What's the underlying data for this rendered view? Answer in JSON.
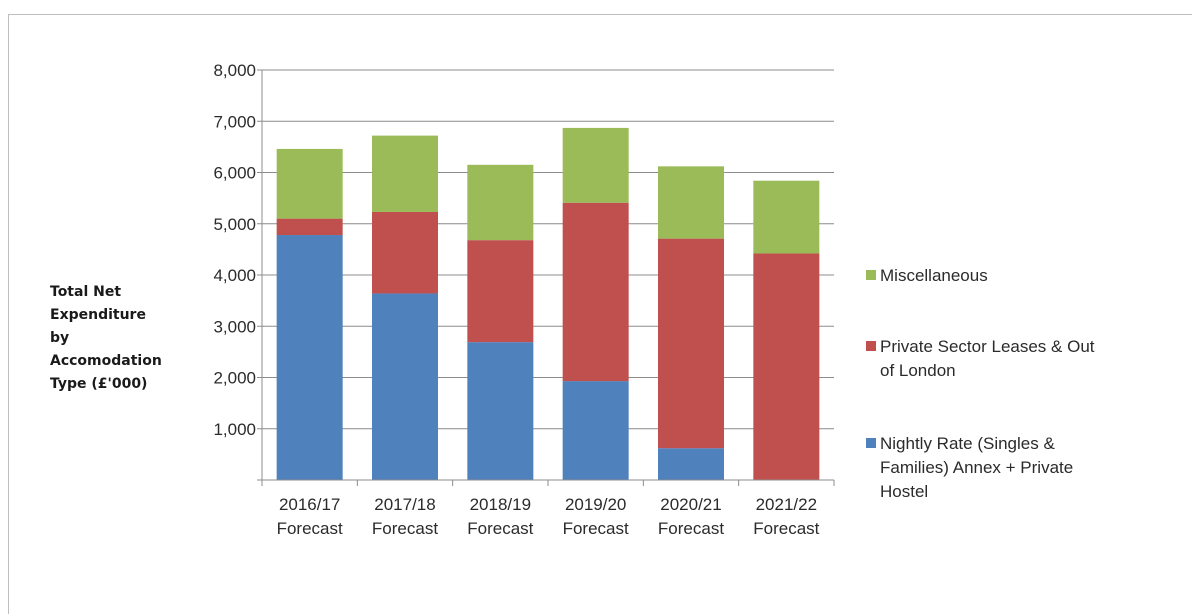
{
  "chart_data": {
    "type": "bar",
    "stacked": true,
    "ylabel": "Total Net Expenditure by Accomodation Type (£'000)",
    "ylabel_lines": [
      "Total Net",
      "Expenditure",
      "by",
      "Accomodation",
      "Type (£'000)"
    ],
    "ylim": [
      0,
      8000
    ],
    "yticks": [
      0,
      1000,
      2000,
      3000,
      4000,
      5000,
      6000,
      7000,
      8000
    ],
    "ytick_labels": [
      "",
      "1,000",
      "2,000",
      "3,000",
      "4,000",
      "5,000",
      "6,000",
      "7,000",
      "8,000"
    ],
    "grid": true,
    "legend_position": "right",
    "categories": [
      [
        "2016/17",
        "Forecast"
      ],
      [
        "2017/18",
        "Forecast"
      ],
      [
        "2018/19",
        "Forecast"
      ],
      [
        "2019/20",
        "Forecast"
      ],
      [
        "2020/21",
        "Forecast"
      ],
      [
        "2021/22",
        "Forecast"
      ]
    ],
    "series": [
      {
        "name": "Nightly Rate (Singles & Families) Annex + Private Hostel",
        "legend_lines": [
          "Nightly Rate (Singles &",
          "Families) Annex + Private",
          "Hostel"
        ],
        "color": "#4f81bd",
        "values": [
          4780,
          3640,
          2690,
          1930,
          620,
          0
        ]
      },
      {
        "name": "Private Sector Leases & Out of London",
        "legend_lines": [
          "Private Sector Leases & Out",
          "of London"
        ],
        "color": "#c0504d",
        "values": [
          320,
          1590,
          1990,
          3480,
          4090,
          4420
        ]
      },
      {
        "name": "Miscellaneous",
        "legend_lines": [
          "Miscellaneous"
        ],
        "color": "#9bbb59",
        "values": [
          1360,
          1490,
          1470,
          1460,
          1410,
          1420
        ]
      }
    ]
  }
}
